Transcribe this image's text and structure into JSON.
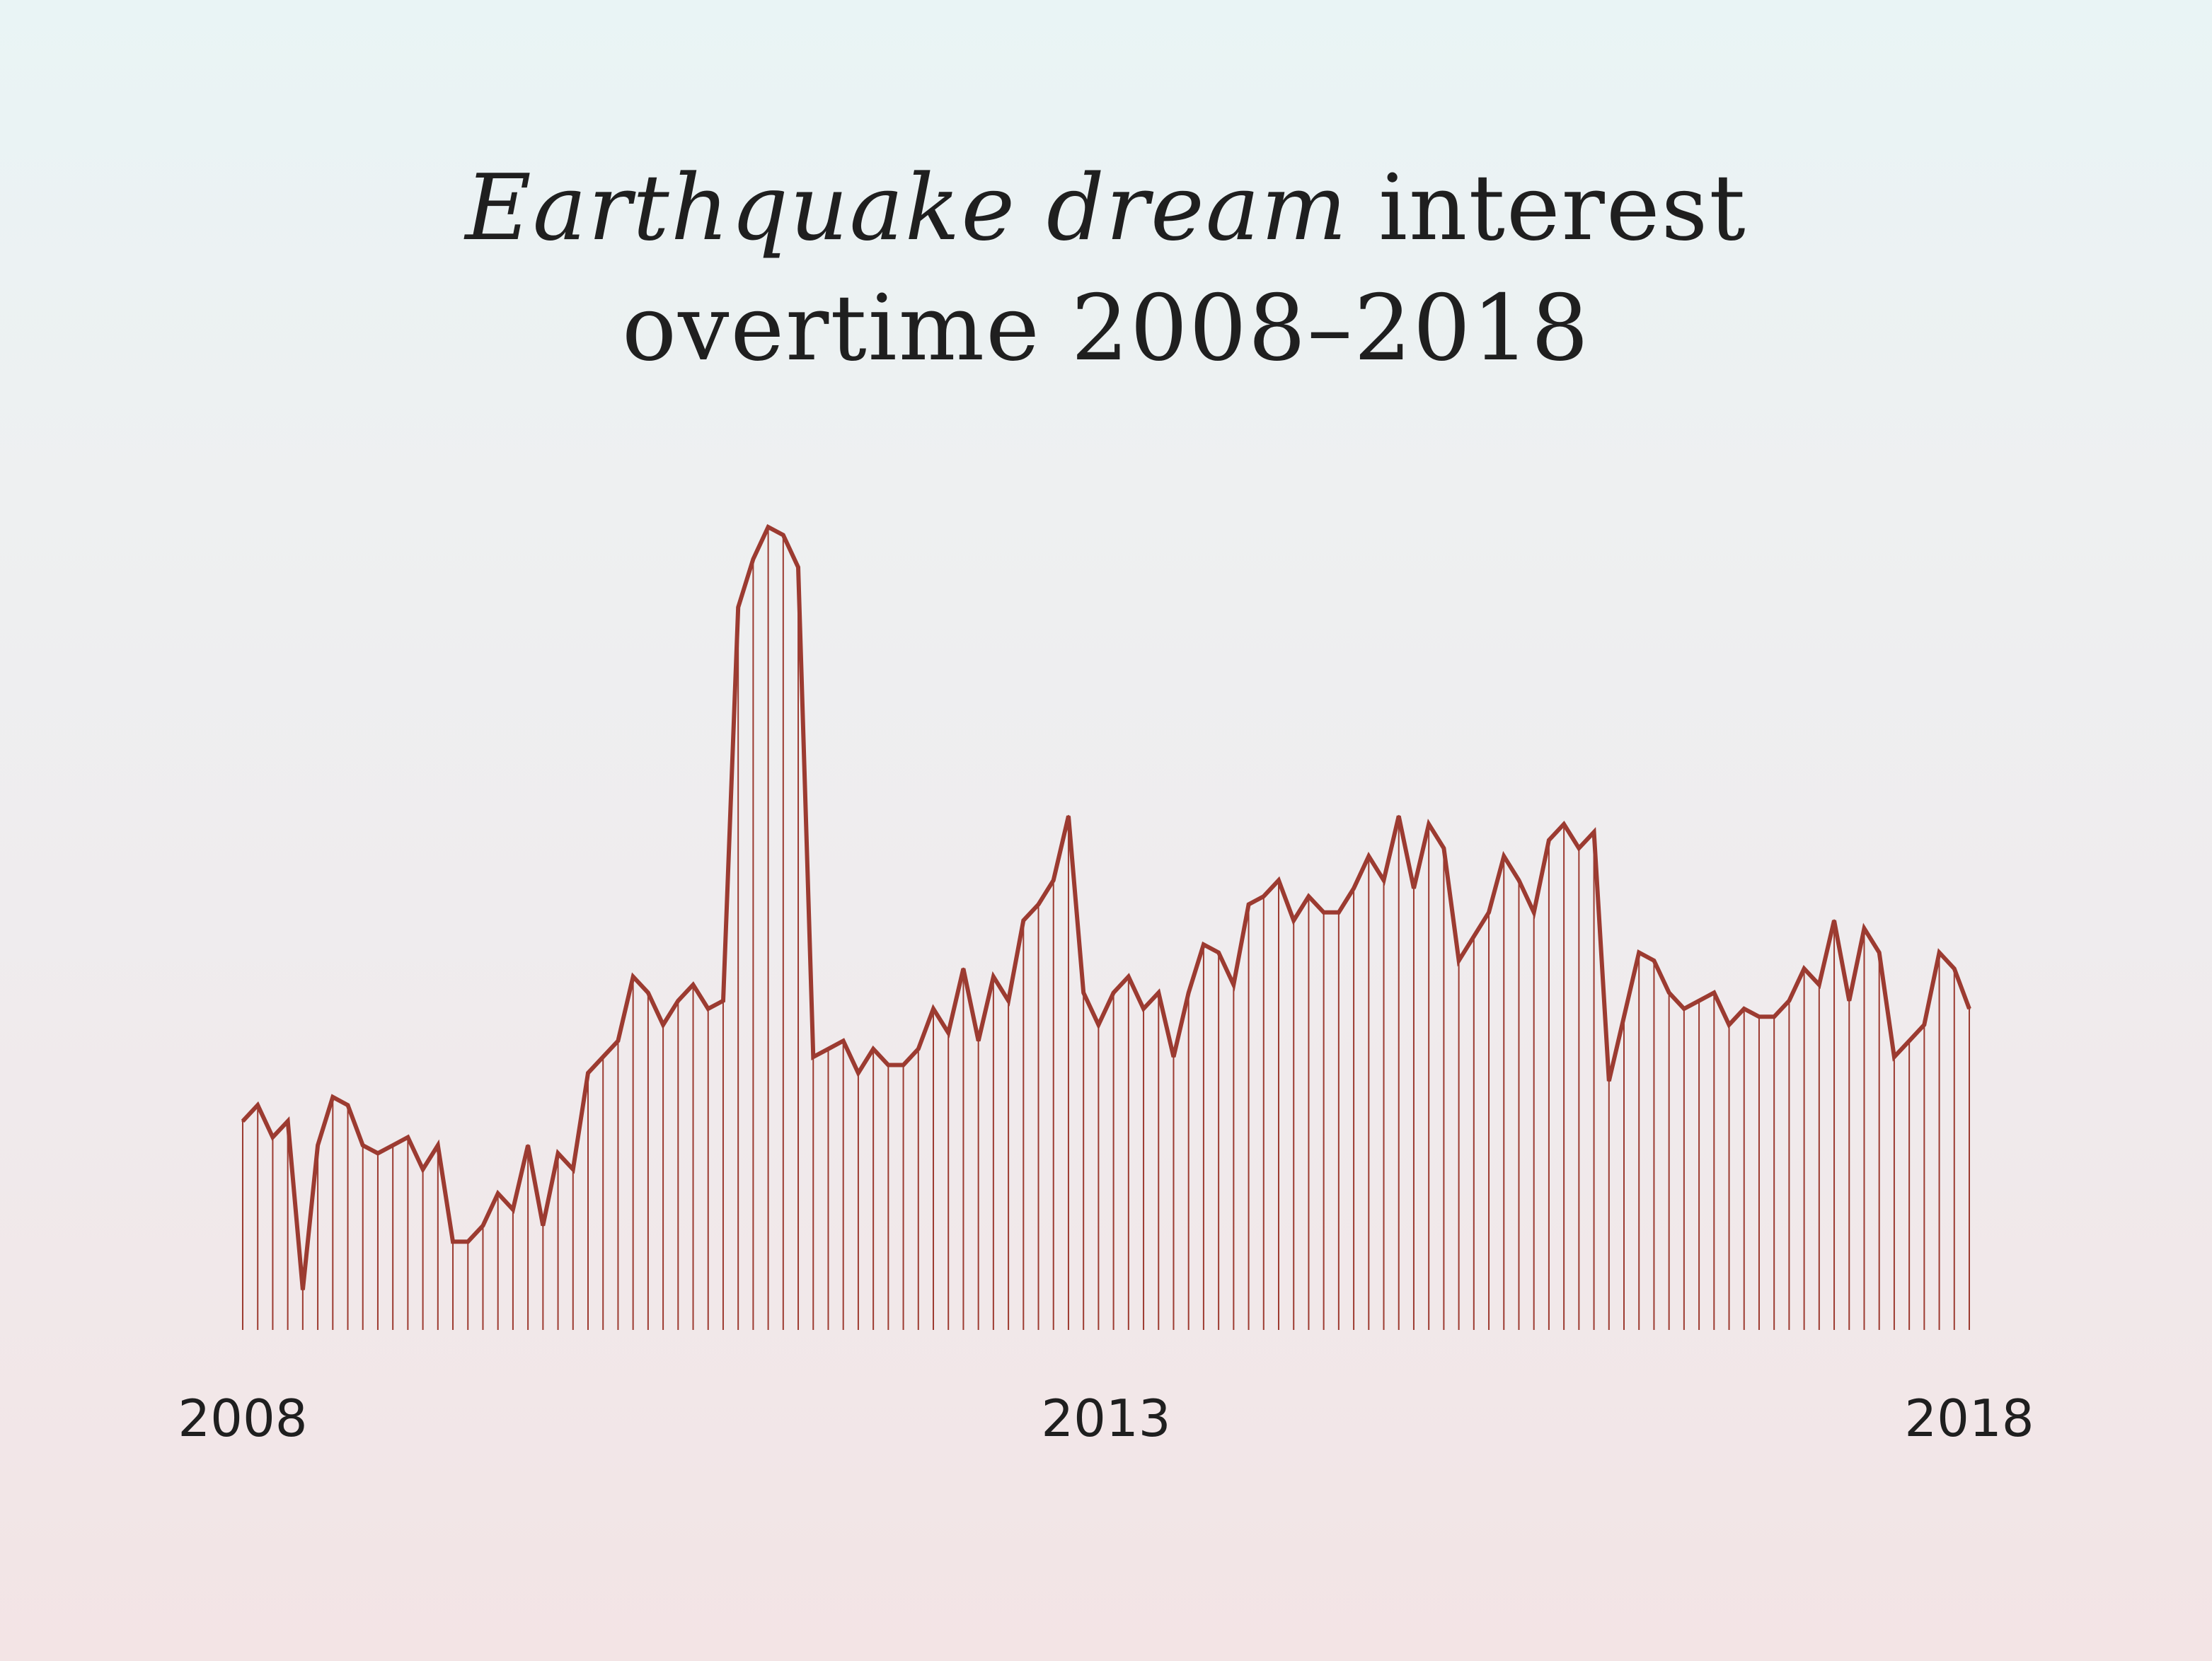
{
  "chart_data": {
    "type": "line",
    "title_italic": "Earthquake dream",
    "title_rest": " interest",
    "title_line2": "overtime 2008–2018",
    "color": "#9c3b31",
    "x_start": "2008-01",
    "x_end": "2018-01",
    "x_ticks": [
      "2008",
      "2013",
      "2018"
    ],
    "ylim": [
      0,
      100
    ],
    "grid": false,
    "legend": "none",
    "values": [
      26,
      28,
      24,
      26,
      5,
      23,
      29,
      28,
      23,
      22,
      23,
      24,
      20,
      23,
      11,
      11,
      13,
      17,
      15,
      23,
      13,
      22,
      20,
      32,
      34,
      36,
      44,
      42,
      38,
      41,
      43,
      40,
      41,
      90,
      96,
      100,
      99,
      95,
      34,
      35,
      36,
      32,
      35,
      33,
      33,
      35,
      40,
      37,
      45,
      36,
      44,
      41,
      51,
      53,
      56,
      64,
      42,
      38,
      42,
      44,
      40,
      42,
      34,
      42,
      48,
      47,
      43,
      53,
      54,
      56,
      51,
      54,
      52,
      52,
      55,
      59,
      56,
      64,
      55,
      63,
      60,
      46,
      49,
      52,
      59,
      56,
      52,
      61,
      63,
      60,
      62,
      31,
      39,
      47,
      46,
      42,
      40,
      41,
      42,
      38,
      40,
      39,
      39,
      41,
      45,
      43,
      51,
      41,
      50,
      47,
      34,
      36,
      38,
      47,
      45,
      40
    ]
  }
}
